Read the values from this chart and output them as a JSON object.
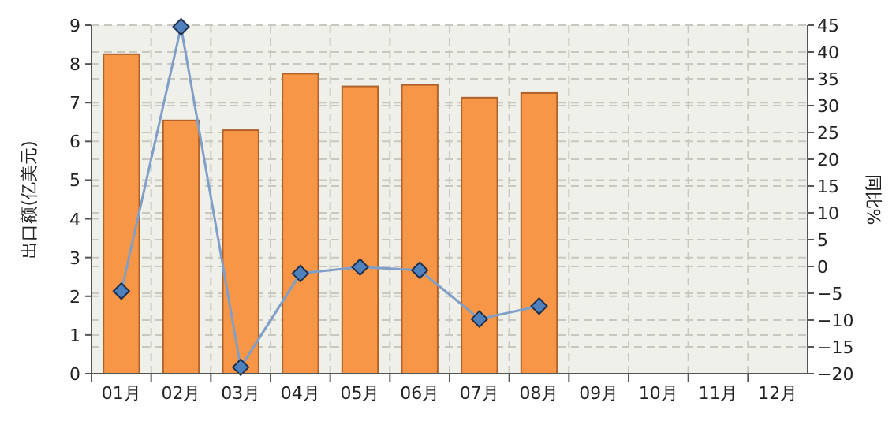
{
  "chart_data": {
    "type": "bar",
    "ylabel": "出口额(亿美元)",
    "y2label": "同比%",
    "categories": [
      "01月",
      "02月",
      "03月",
      "04月",
      "05月",
      "06月",
      "07月",
      "08月",
      "09月",
      "10月",
      "11月",
      "12月"
    ],
    "series": [
      {
        "color": "#f79646",
        "values": [
          8.25,
          6.54,
          6.29,
          7.75,
          7.42,
          7.46,
          7.13,
          7.25,
          null,
          null,
          null,
          null
        ]
      },
      {
        "type": "line",
        "axis": "y2",
        "color": "#7f9fc8",
        "marker": "diamond",
        "values": [
          -4.6,
          44.7,
          -18.8,
          -1.3,
          -0.1,
          -0.7,
          -9.8,
          -7.4,
          null,
          null,
          null,
          null
        ]
      }
    ],
    "ylim": [
      0,
      9
    ],
    "yticks": [
      0,
      1,
      2,
      3,
      4,
      5,
      6,
      7,
      8,
      9
    ],
    "y2lim": [
      -20,
      45
    ],
    "y2ticks": [
      -20,
      -15,
      -10,
      -5,
      0,
      5,
      10,
      15,
      20,
      25,
      30,
      35,
      40,
      45
    ],
    "grid": true
  }
}
